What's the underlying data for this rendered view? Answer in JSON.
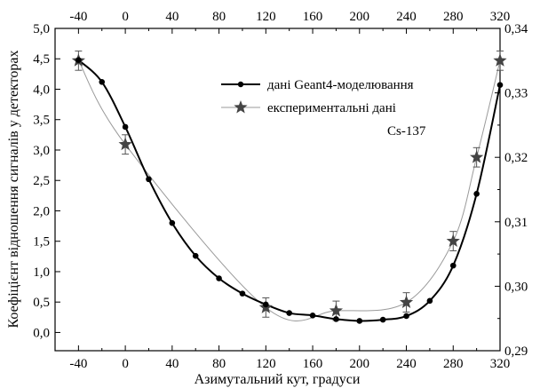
{
  "chart_data": {
    "type": "scatter",
    "xlabel": "Азимутальний кут, градуси",
    "ylabel": "Коефіцієнт відношення сигналів у детекторах",
    "xlim": [
      -60,
      320
    ],
    "ylim_left": [
      -0.3,
      5.0
    ],
    "ylim_right": [
      0.29,
      0.34
    ],
    "x_ticks_bottom": [
      -40,
      0,
      40,
      80,
      120,
      160,
      200,
      240,
      280,
      320
    ],
    "x_ticks_top": [
      -40,
      0,
      40,
      80,
      120,
      160,
      200,
      240,
      280,
      320
    ],
    "y_ticks_left": [
      "0,0",
      "0,5",
      "1,0",
      "1,5",
      "2,0",
      "2,5",
      "3,0",
      "3,5",
      "4,0",
      "4,5",
      "5,0"
    ],
    "y_ticks_right": [
      "0,29",
      "0,30",
      "0,31",
      "0,32",
      "0,33",
      "0,34"
    ],
    "annotation": "Cs-137",
    "legend_position": "top-right",
    "series": [
      {
        "name": "дані Geant4-моделювання",
        "axis": "left",
        "marker": "circle",
        "color": "#000000",
        "x": [
          -40,
          -20,
          0,
          20,
          40,
          60,
          80,
          100,
          120,
          140,
          160,
          180,
          200,
          220,
          240,
          260,
          280,
          300,
          320
        ],
        "y": [
          4.48,
          4.12,
          3.38,
          2.52,
          1.8,
          1.26,
          0.89,
          0.64,
          0.46,
          0.32,
          0.28,
          0.22,
          0.19,
          0.21,
          0.27,
          0.52,
          1.1,
          2.28,
          4.07
        ]
      },
      {
        "name": "експериментальні дані",
        "axis": "right",
        "marker": "star",
        "color": "#444444",
        "x": [
          -40,
          0,
          120,
          180,
          240,
          280,
          300,
          320
        ],
        "y": [
          0.335,
          0.322,
          0.2967,
          0.2962,
          0.2975,
          0.307,
          0.32,
          0.335
        ],
        "err": [
          0.0015,
          0.0015,
          0.0015,
          0.0015,
          0.0015,
          0.0015,
          0.0015,
          0.0015
        ]
      }
    ]
  }
}
